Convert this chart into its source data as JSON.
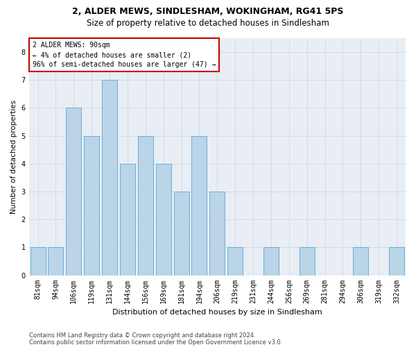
{
  "title_line1": "2, ALDER MEWS, SINDLESHAM, WOKINGHAM, RG41 5PS",
  "title_line2": "Size of property relative to detached houses in Sindlesham",
  "xlabel": "Distribution of detached houses by size in Sindlesham",
  "ylabel": "Number of detached properties",
  "categories": [
    "81sqm",
    "94sqm",
    "106sqm",
    "119sqm",
    "131sqm",
    "144sqm",
    "156sqm",
    "169sqm",
    "181sqm",
    "194sqm",
    "206sqm",
    "219sqm",
    "231sqm",
    "244sqm",
    "256sqm",
    "269sqm",
    "281sqm",
    "294sqm",
    "306sqm",
    "319sqm",
    "332sqm"
  ],
  "values": [
    1,
    1,
    6,
    5,
    7,
    4,
    5,
    4,
    3,
    5,
    3,
    1,
    0,
    1,
    0,
    1,
    0,
    0,
    1,
    0,
    1
  ],
  "bar_color": "#bad4e8",
  "bar_edge_color": "#6aaed6",
  "annotation_text": "2 ALDER MEWS: 90sqm\n← 4% of detached houses are smaller (2)\n96% of semi-detached houses are larger (47) →",
  "annotation_box_color": "#ffffff",
  "annotation_box_edge": "#cc0000",
  "ylim": [
    0,
    8.5
  ],
  "yticks": [
    0,
    1,
    2,
    3,
    4,
    5,
    6,
    7,
    8
  ],
  "footer_line1": "Contains HM Land Registry data © Crown copyright and database right 2024.",
  "footer_line2": "Contains public sector information licensed under the Open Government Licence v3.0.",
  "grid_color": "#d0d8e4",
  "bg_color": "#e8eef4",
  "title_fontsize": 9,
  "subtitle_fontsize": 8.5,
  "xlabel_fontsize": 8,
  "ylabel_fontsize": 7.5,
  "tick_fontsize": 7,
  "footer_fontsize": 6
}
